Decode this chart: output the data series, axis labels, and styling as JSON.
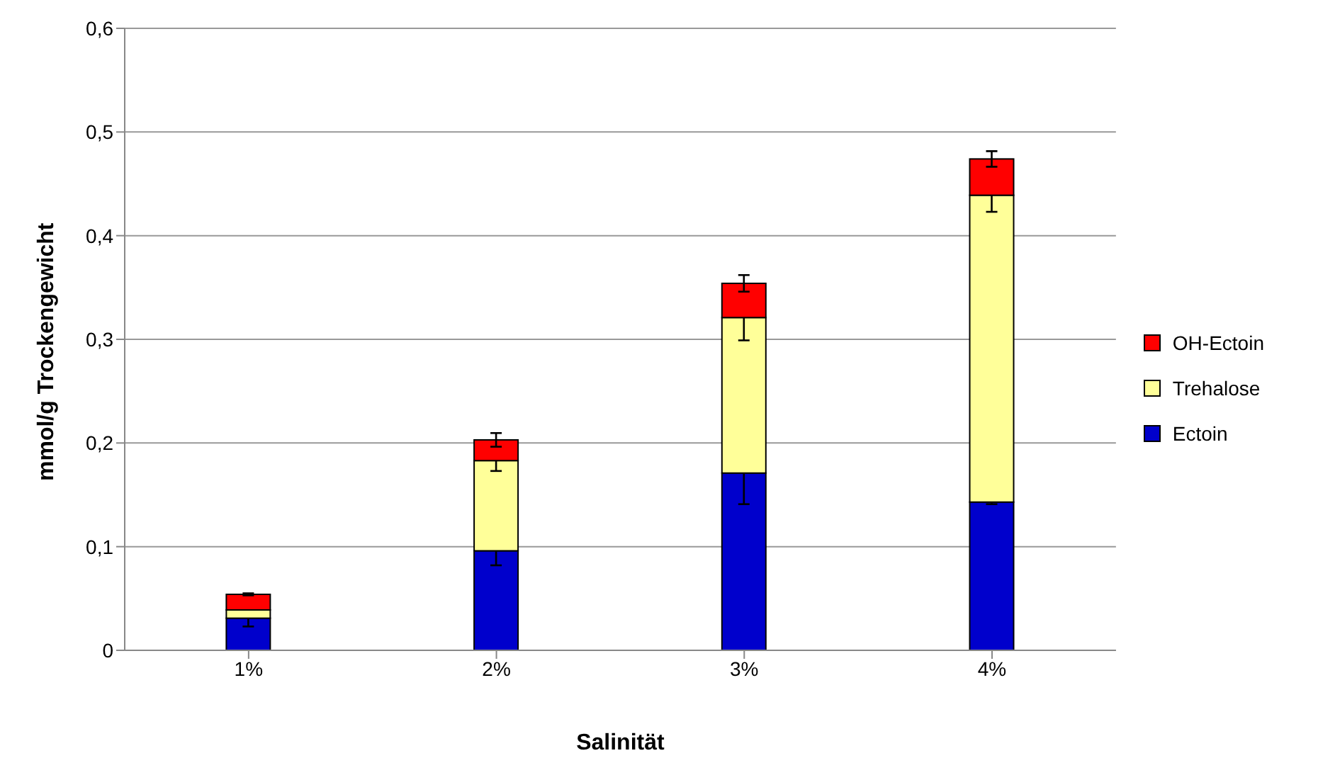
{
  "chart_data": {
    "type": "bar",
    "stacked": true,
    "xlabel": "Salinität",
    "ylabel": "mmol/g Trockengewicht",
    "categories": [
      "1%",
      "2%",
      "3%",
      "4%"
    ],
    "series": [
      {
        "name": "Ectoin",
        "color": "#0000cc",
        "values": [
          0.031,
          0.096,
          0.171,
          0.143
        ],
        "errors": [
          0.008,
          0.014,
          0.03,
          0.002
        ]
      },
      {
        "name": "Trehalose",
        "color": "#ffff99",
        "values": [
          0.008,
          0.087,
          0.15,
          0.296
        ],
        "errors": [
          null,
          0.01,
          0.022,
          0.016
        ]
      },
      {
        "name": "OH-Ectoin",
        "color": "#ff0000",
        "values": [
          0.015,
          0.02,
          0.033,
          0.035
        ],
        "errors": [
          0.001,
          0.0066,
          0.008,
          0.0075
        ]
      }
    ],
    "ylim": [
      0,
      0.6
    ],
    "yticks": [
      0,
      {
        "value": 0.1,
        "label": "0,1"
      },
      {
        "value": 0.2,
        "label": "0,2"
      },
      {
        "value": 0.3,
        "label": "0,3"
      },
      {
        "value": 0.4,
        "label": "0,4"
      },
      {
        "value": 0.5,
        "label": "0,5"
      },
      {
        "value": 0.6,
        "label": "0,6"
      }
    ],
    "grid": "y",
    "legend": "right"
  }
}
